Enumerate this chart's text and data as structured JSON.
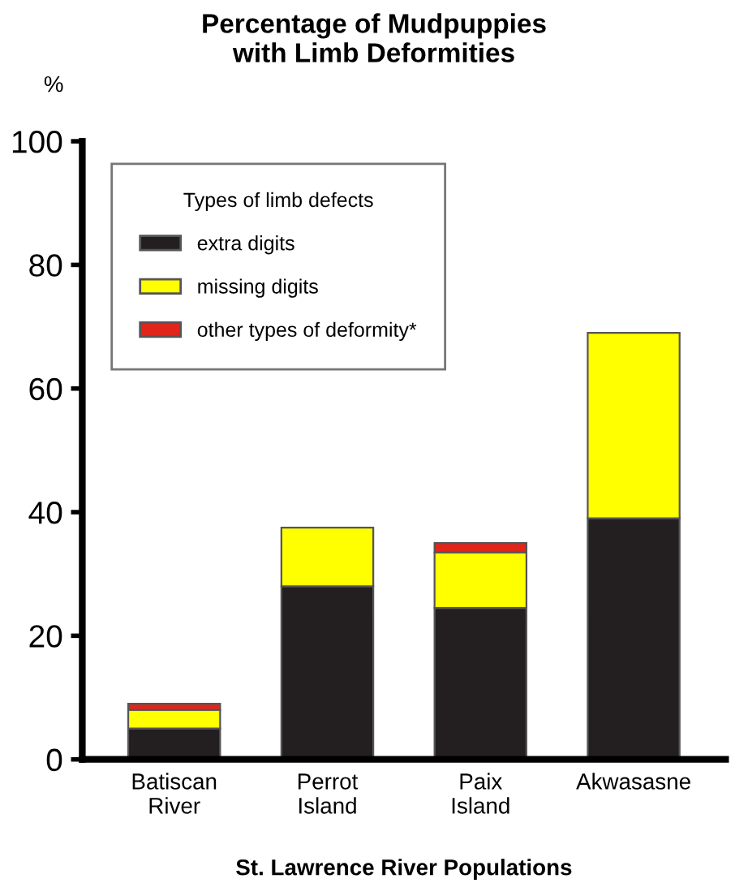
{
  "chart_data": {
    "type": "bar",
    "title": "Percentage of Mudpuppies\nwith Limb Deformities",
    "ylabel": "%",
    "xlabel": "St. Lawrence River Populations",
    "legend_title": "Types of limb defects",
    "categories": [
      "Batiscan\nRiver",
      "Perrot\nIsland",
      "Paix\nIsland",
      "Akwasasne"
    ],
    "stacked": true,
    "series": [
      {
        "name": "extra digits",
        "color": "#231f20",
        "values": [
          5,
          28,
          24.5,
          39
        ]
      },
      {
        "name": "missing digits",
        "color": "#ffff00",
        "values": [
          3,
          9.5,
          9,
          30
        ]
      },
      {
        "name": "other types of deformity*",
        "color": "#e0251b",
        "values": [
          1,
          0,
          1.5,
          0
        ]
      }
    ],
    "ylim": [
      0,
      100
    ],
    "yticks": [
      0,
      20,
      40,
      60,
      80,
      100
    ],
    "grid": false,
    "legend": "top left"
  }
}
